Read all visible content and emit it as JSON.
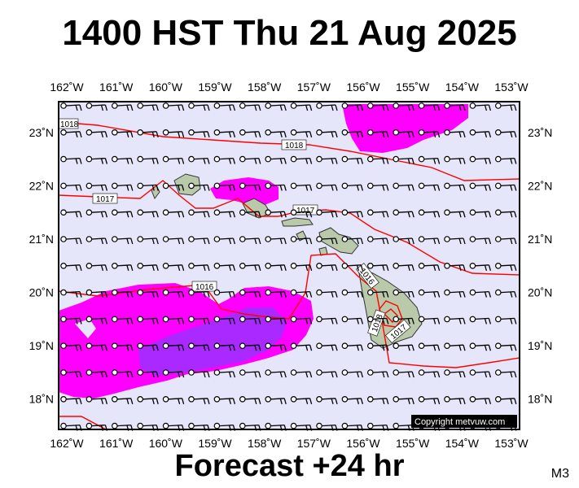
{
  "header": {
    "title": "1400 HST Thu 21 Aug 2025"
  },
  "footer": {
    "forecast": "Forecast +24 hr",
    "model": "M3"
  },
  "map": {
    "region": "Hawaiian Islands",
    "lon_range": [
      -162,
      -153
    ],
    "lat_range": [
      17.5,
      23.5
    ],
    "lon_ticks": [
      "162˚W",
      "161˚W",
      "160˚W",
      "159˚W",
      "158˚W",
      "157˚W",
      "156˚W",
      "155˚W",
      "154˚W",
      "153˚W"
    ],
    "lat_ticks": [
      "23˚N",
      "22˚N",
      "21˚N",
      "20˚N",
      "19˚N",
      "18˚N"
    ],
    "isobar_labels": [
      "1018",
      "1018",
      "1017",
      "1017",
      "1016",
      "1016",
      "1017",
      "1018"
    ],
    "copyright": "Copyright metvuw.com",
    "colors": {
      "background": "#e6e6fa",
      "rain_light": "#ff00ff",
      "rain_heavy": "#9b30ff",
      "isobar": "#ff0000",
      "land": "#b9c9a9"
    }
  }
}
